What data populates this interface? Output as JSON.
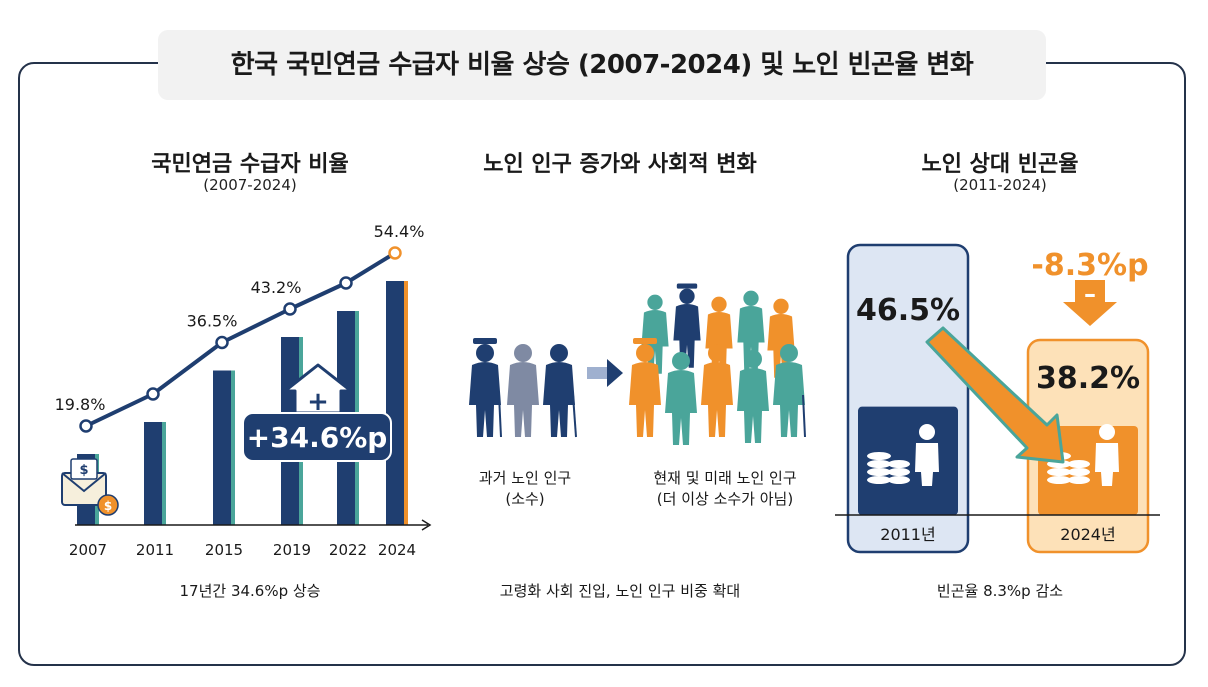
{
  "title": "한국 국민연금 수급자 비율 상승 (2007-2024) 및 노인 빈곤율 변화",
  "left_panel": {
    "title": "국민연금 수급자 비율",
    "subtitle": "(2007-2024)",
    "increase_label": "+34.6%p",
    "plus_sign": "+",
    "caption": "17년간 34.6%p 상승",
    "icon": "envelope-money-icon"
  },
  "middle_panel": {
    "title": "노인 인구 증가와 사회적 변화",
    "past_label_line1": "과거 노인 인구",
    "past_label_line2": "(소수)",
    "future_label_line1": "현재 및 미래 노인 인구",
    "future_label_line2": "(더 이상 소수가 아님)",
    "caption": "고령화 사회 진입, 노인 인구 비중 확대",
    "colors": {
      "past": "#1f3e70",
      "past_mid": "#7f8aa3",
      "teal": "#4aa59a",
      "orange": "#f0912b"
    }
  },
  "right_panel": {
    "title": "노인 상대 빈곤율",
    "subtitle": "(2011-2024)",
    "change_label": "-8.3%p",
    "minus_sign": "–",
    "caption": "빈곤율 8.3%p 감소"
  },
  "colors": {
    "navy": "#1f3e70",
    "teal": "#4aa59a",
    "orange": "#f0912b",
    "orange_light": "#fde1b8",
    "navy_light": "#dde6f3"
  },
  "chart_data": [
    {
      "type": "line",
      "title": "국민연금 수급자 비율",
      "subtitle": "(2007-2024)",
      "categories": [
        "2007",
        "2011",
        "2015",
        "2019",
        "2022",
        "2024"
      ],
      "series": [
        {
          "name": "수급자 비율",
          "values": [
            19.8,
            26.2,
            36.5,
            43.2,
            48.4,
            54.4
          ]
        }
      ],
      "data_labels": {
        "2007": "19.8%",
        "2015": "36.5%",
        "2019": "43.2%",
        "2024": "54.4%"
      },
      "annotation": "+34.6%p",
      "ylim": [
        0,
        60
      ]
    },
    {
      "type": "bar",
      "title": "노인 상대 빈곤율",
      "subtitle": "(2011-2024)",
      "categories": [
        "2011년",
        "2024년"
      ],
      "values": [
        46.5,
        38.2
      ],
      "value_labels": [
        "46.5%",
        "38.2%"
      ],
      "annotation": "-8.3%p"
    }
  ]
}
